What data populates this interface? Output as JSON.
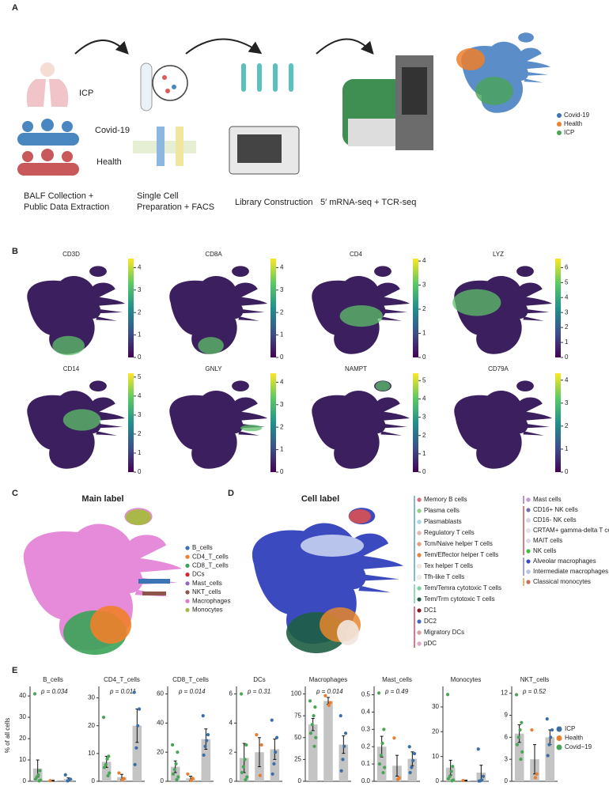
{
  "panel_a": {
    "letter": "A",
    "groups": [
      {
        "name": "ICP",
        "color": "#d99ad6"
      },
      {
        "name": "Covid-19",
        "color": "#4a8cc4"
      },
      {
        "name": "Health",
        "color": "#e07670"
      }
    ],
    "steps": [
      [
        "BALF Collection +",
        "Public Data Extraction"
      ],
      [
        "Single Cell",
        "Preparation + FACS"
      ],
      [
        "Library Construction"
      ],
      [
        "5′ mRNA-seq + TCR-seq"
      ]
    ],
    "legend": [
      {
        "name": "Covid-19",
        "color": "#3c74b4"
      },
      {
        "name": "Health",
        "color": "#ef7f2b"
      },
      {
        "name": "ICP",
        "color": "#4aa457"
      }
    ]
  },
  "panel_b": {
    "letter": "B",
    "plots": [
      {
        "gene": "CD3D",
        "lim": [
          0,
          4.4
        ],
        "ticks": [
          0,
          1,
          2,
          3,
          4
        ]
      },
      {
        "gene": "CD8A",
        "lim": [
          0,
          4.4
        ],
        "ticks": [
          0,
          1,
          2,
          3,
          4
        ]
      },
      {
        "gene": "CD4",
        "lim": [
          0,
          4.1
        ],
        "ticks": [
          0,
          1,
          2,
          3,
          4
        ]
      },
      {
        "gene": "LYZ",
        "lim": [
          0,
          6.6
        ],
        "ticks": [
          0,
          1,
          2,
          3,
          4,
          5,
          6
        ]
      },
      {
        "gene": "CD14",
        "lim": [
          0,
          5.2
        ],
        "ticks": [
          0,
          1,
          2,
          3,
          4,
          5
        ]
      },
      {
        "gene": "GNLY",
        "lim": [
          0,
          4.4
        ],
        "ticks": [
          0,
          1,
          2,
          3,
          4
        ]
      },
      {
        "gene": "NAMPT",
        "lim": [
          0,
          5.4
        ],
        "ticks": [
          0,
          1,
          2,
          3,
          4,
          5
        ]
      },
      {
        "gene": "CD79A",
        "lim": [
          0,
          4.3
        ],
        "ticks": [
          0,
          1,
          2,
          3,
          4
        ]
      }
    ]
  },
  "panel_c": {
    "letter": "C",
    "title": "Main label",
    "legend": [
      {
        "name": "B_cells",
        "color": "#3b74b4"
      },
      {
        "name": "CD4_T_cells",
        "color": "#ef7f2b"
      },
      {
        "name": "CD8_T_cells",
        "color": "#3aa357"
      },
      {
        "name": "DCs",
        "color": "#d62728"
      },
      {
        "name": "Mast_cells",
        "color": "#9467bd"
      },
      {
        "name": "NKT_cells",
        "color": "#8c564b"
      },
      {
        "name": "Macrophages",
        "color": "#e377c2"
      },
      {
        "name": "Monocytes",
        "color": "#aab84a"
      }
    ]
  },
  "panel_d": {
    "letter": "D",
    "title": "Cell label",
    "legend": [
      [
        {
          "name": "Memory B cells",
          "color": "#d86b7e"
        },
        {
          "name": "Plasma cells",
          "color": "#8fd37c"
        },
        {
          "name": "Plasmablasts",
          "color": "#a7d8e8"
        },
        {
          "name": "Regulatory T cells",
          "color": "#e8b8b0"
        },
        {
          "name": "Tcm/Naive helper T cells",
          "color": "#e8a07a"
        },
        {
          "name": "Tem/Effector helper T cells",
          "color": "#e7862a"
        },
        {
          "name": "Tex helper T cells",
          "color": "#f2e6de"
        },
        {
          "name": "Tfh-like T cells",
          "color": "#f4eee8"
        },
        {
          "name": "Tem/Temra cytotoxic T cells",
          "color": "#7fcfa9"
        },
        {
          "name": "Tem/Trm cytotoxic T cells",
          "color": "#1e5e44"
        },
        {
          "name": "DC1",
          "color": "#8b1a2a"
        },
        {
          "name": "DC2",
          "color": "#4466c1"
        },
        {
          "name": "Migratory DCs",
          "color": "#e09aa6"
        },
        {
          "name": "pDC",
          "color": "#e8a6c6"
        }
      ],
      [
        {
          "name": "Mast cells",
          "color": "#c39cd8"
        },
        {
          "name": "CD16+ NK cells",
          "color": "#6c6fb0"
        },
        {
          "name": "CD16- NK cells",
          "color": "#d4d4e6"
        },
        {
          "name": "CRTAM+ gamma-delta T cells",
          "color": "#e4e4ee"
        },
        {
          "name": "MAIT cells",
          "color": "#d8d8ee"
        },
        {
          "name": "NK cells",
          "color": "#3ac43a"
        },
        {
          "name": "Alveolar macrophages",
          "color": "#3b4bbf"
        },
        {
          "name": "Intermediate macrophages",
          "color": "#b8c4ec"
        },
        {
          "name": "Classical monocytes",
          "color": "#c87050"
        }
      ]
    ]
  },
  "panel_e": {
    "letter": "E",
    "legend": [
      {
        "name": "ICP",
        "color": "#3a6ea5"
      },
      {
        "name": "Health",
        "color": "#e87d2b"
      },
      {
        "name": "Covid−19",
        "color": "#4aa457"
      }
    ]
  },
  "chart_data": [
    {
      "type": "bar",
      "title": "B_cells",
      "ylabel": "% of all cells",
      "p_label": "p = 0.034",
      "color": "#c4c4c4",
      "point_colors": [
        "#4aa457",
        "#e87d2b",
        "#3a6ea5"
      ],
      "values": [
        6,
        0.3,
        1
      ],
      "errors": [
        4,
        0.2,
        0.6
      ],
      "points": [
        [
          41,
          5,
          3,
          2,
          1,
          0.5,
          0.2
        ],
        [
          0.3
        ],
        [
          3,
          1,
          0.5,
          0.2
        ]
      ],
      "ylim": [
        0,
        43
      ],
      "yticks": [
        0,
        10,
        20,
        30,
        40
      ]
    },
    {
      "type": "bar",
      "title": "CD4_T_cells",
      "p_label": "p = 0.011",
      "color": "#c4c4c4",
      "point_colors": [
        "#4aa457",
        "#e87d2b",
        "#3a6ea5"
      ],
      "values": [
        7,
        1.5,
        20
      ],
      "errors": [
        2,
        1,
        6
      ],
      "points": [
        [
          23,
          9,
          8,
          6,
          5,
          3,
          2
        ],
        [
          3,
          1,
          0.5
        ],
        [
          32,
          26,
          20,
          12,
          6
        ]
      ],
      "ylim": [
        0,
        33
      ],
      "yticks": [
        0,
        10,
        20,
        30
      ]
    },
    {
      "type": "bar",
      "title": "CD8_T_cells",
      "p_label": "p = 0.014",
      "color": "#c4c4c4",
      "point_colors": [
        "#4aa457",
        "#e87d2b",
        "#3a6ea5"
      ],
      "values": [
        10,
        2,
        29
      ],
      "errors": [
        4,
        1.5,
        7
      ],
      "points": [
        [
          25,
          20,
          12,
          8,
          5,
          3,
          1
        ],
        [
          5,
          2,
          0.5
        ],
        [
          45,
          32,
          28,
          24,
          18
        ]
      ],
      "ylim": [
        0,
        63
      ],
      "yticks": [
        0,
        20,
        40,
        60
      ]
    },
    {
      "type": "bar",
      "title": "DCs",
      "p_label": "p = 0.31",
      "color": "#c4c4c4",
      "point_colors": [
        "#4aa457",
        "#e87d2b",
        "#3a6ea5"
      ],
      "values": [
        1.6,
        2,
        2.2
      ],
      "errors": [
        1,
        1,
        0.7
      ],
      "points": [
        [
          6,
          2.5,
          1.5,
          1,
          0.6,
          0.3,
          0.1
        ],
        [
          3.2,
          2.5,
          0.4
        ],
        [
          4.2,
          3,
          2,
          1.2,
          0.5
        ]
      ],
      "ylim": [
        0,
        6.3
      ],
      "yticks": [
        0,
        2,
        4,
        6
      ]
    },
    {
      "type": "bar",
      "title": "Macrophages",
      "p_label": "p = 0.014",
      "color": "#c4c4c4",
      "point_colors": [
        "#4aa457",
        "#e87d2b",
        "#3a6ea5"
      ],
      "values": [
        65,
        92,
        42
      ],
      "errors": [
        7,
        4,
        10
      ],
      "points": [
        [
          92,
          85,
          75,
          65,
          55,
          50,
          40
        ],
        [
          98,
          90,
          87
        ],
        [
          75,
          55,
          40,
          25,
          12
        ]
      ],
      "ylim": [
        0,
        105
      ],
      "yticks": [
        0,
        25,
        50,
        75,
        100
      ]
    },
    {
      "type": "bar",
      "title": "Mast_cells",
      "p_label": "p = 0.49",
      "color": "#c4c4c4",
      "point_colors": [
        "#4aa457",
        "#e87d2b",
        "#3a6ea5"
      ],
      "values": [
        0.2,
        0.09,
        0.13
      ],
      "errors": [
        0.06,
        0.06,
        0.04
      ],
      "points": [
        [
          0.51,
          0.3,
          0.22,
          0.15,
          0.1,
          0.08,
          0.05
        ],
        [
          0.25,
          0.02,
          0.01
        ],
        [
          0.2,
          0.16,
          0.12,
          0.08,
          0.05
        ]
      ],
      "ylim": [
        0,
        0.53
      ],
      "yticks": [
        {
          "value": 0,
          "label": "0.0"
        },
        0.1,
        0.2,
        0.3,
        0.4,
        0.5
      ]
    },
    {
      "type": "bar",
      "title": "Monocytes",
      "color": "#c4c4c4",
      "point_colors": [
        "#4aa457",
        "#e87d2b",
        "#3a6ea5"
      ],
      "values": [
        5.5,
        0.3,
        3.5
      ],
      "errors": [
        3,
        0.2,
        3
      ],
      "points": [
        [
          35,
          6,
          4,
          2,
          1,
          0.5,
          0.2
        ],
        [
          0.3
        ],
        [
          13,
          2,
          0.5,
          0.2,
          0.1
        ]
      ],
      "ylim": [
        0,
        37
      ],
      "yticks": [
        0,
        10,
        20,
        30
      ]
    },
    {
      "type": "bar",
      "title": "NKT_cells",
      "p_label": "p = 0.52",
      "color": "#c4c4c4",
      "point_colors": [
        "#4aa457",
        "#e87d2b",
        "#3a6ea5"
      ],
      "values": [
        6.5,
        3,
        6
      ],
      "errors": [
        1.2,
        2,
        1
      ],
      "points": [
        [
          11.8,
          8,
          7,
          6,
          5,
          4,
          3
        ],
        [
          7,
          1,
          0.5
        ],
        [
          8.5,
          7,
          6,
          5,
          3.5
        ]
      ],
      "ylim": [
        0,
        12.5
      ],
      "yticks": [
        0,
        3,
        6,
        9,
        12
      ]
    }
  ]
}
